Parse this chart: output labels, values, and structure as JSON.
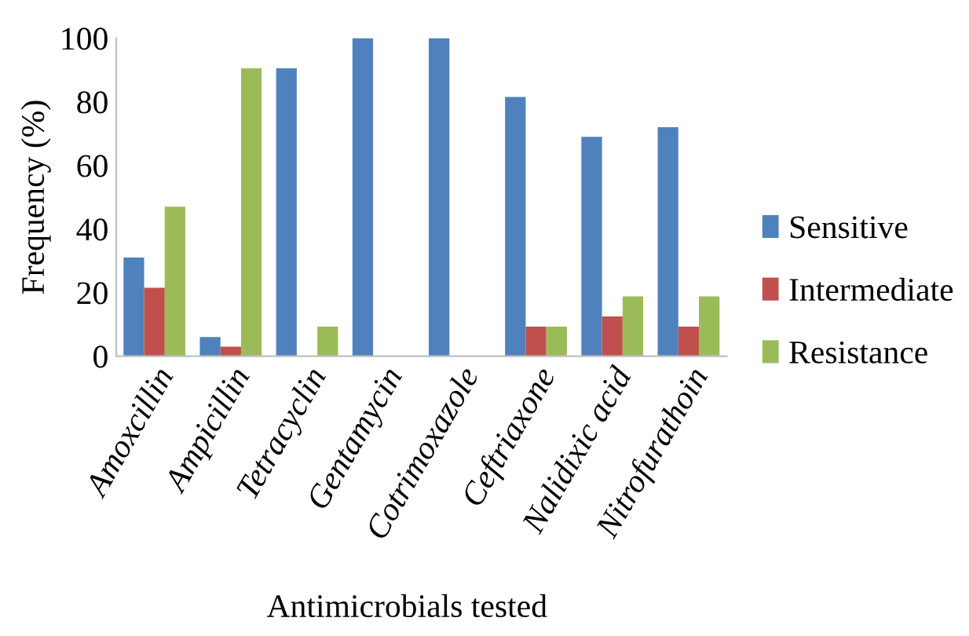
{
  "chart_data": {
    "type": "bar",
    "xlabel": "Antimicrobials tested",
    "ylabel": "Frequency (%)",
    "categories": [
      "Amoxcillin",
      "Ampicillin",
      "Tetracyclin",
      "Gentamycin",
      "Cotrimoxazole",
      "Ceftriaxone",
      "Nalidixic acid",
      "Nitrofurathoin"
    ],
    "series": [
      {
        "name": "Sensitive",
        "color": "#4f81bd",
        "values": [
          31,
          6,
          90.5,
          100,
          100,
          81.5,
          69,
          72
        ]
      },
      {
        "name": "Intermediate",
        "color": "#c0504d",
        "values": [
          21.5,
          3,
          0,
          0,
          0,
          9.3,
          12.5,
          9.3
        ]
      },
      {
        "name": "Resistance",
        "color": "#9bbb59",
        "values": [
          47,
          90.5,
          9.3,
          0,
          0,
          9.3,
          18.8,
          18.8
        ]
      }
    ],
    "ylim": [
      0,
      100
    ],
    "yticks": [
      0,
      20,
      40,
      60,
      80,
      100
    ],
    "grid": false,
    "legend": "right"
  }
}
